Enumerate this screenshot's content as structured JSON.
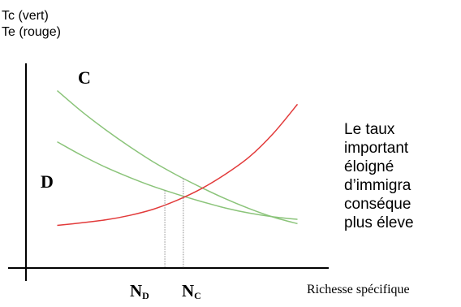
{
  "chart_data": {
    "type": "line",
    "title": "",
    "ylabel_lines": [
      "Tc (vert)",
      "Te (rouge)"
    ],
    "xlabel": "Richesse spécifique",
    "x": [
      0,
      1,
      2,
      3,
      4,
      5,
      6,
      7,
      8,
      9,
      10
    ],
    "series": [
      {
        "name": "C",
        "color": "#8bc47a",
        "values": [
          10.0,
          8.8,
          7.72,
          6.73,
          5.82,
          5.03,
          4.32,
          3.66,
          3.08,
          2.58,
          2.2
        ]
      },
      {
        "name": "D",
        "color": "#8bc47a",
        "values": [
          7.0,
          6.22,
          5.52,
          4.92,
          4.38,
          3.92,
          3.5,
          3.12,
          2.82,
          2.6,
          2.45
        ]
      },
      {
        "name": "",
        "color": "#e23a3a",
        "values": [
          2.1,
          2.25,
          2.42,
          2.68,
          3.05,
          3.58,
          4.25,
          5.1,
          6.12,
          7.5,
          9.2
        ]
      }
    ],
    "xlim": [
      -1.3,
      11.3
    ],
    "ylim": [
      -0.4,
      11.6
    ],
    "ticks": [
      {
        "main": "N",
        "sub": "D",
        "x": 4.48
      },
      {
        "main": "N",
        "sub": "C",
        "x": 5.25
      }
    ],
    "grid": false,
    "legend": "none"
  },
  "side_text": {
    "lines": [
      "Le taux",
      "important",
      "éloigné",
      "d’immigra",
      "conséque",
      "plus éleve"
    ]
  }
}
